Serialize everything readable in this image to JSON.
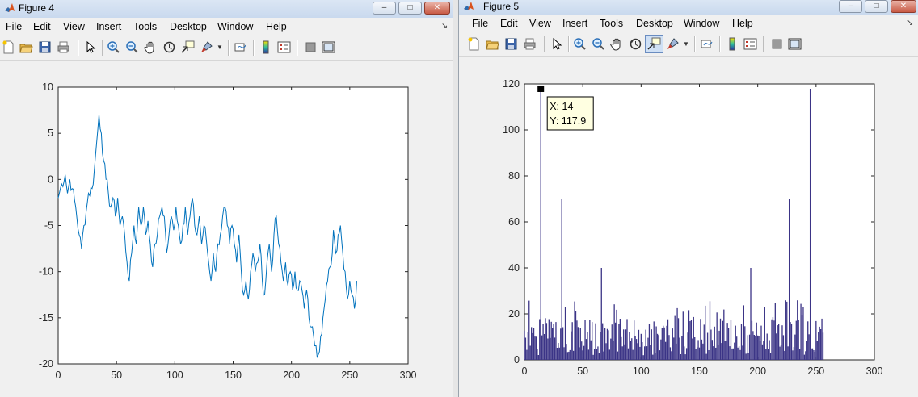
{
  "figure4": {
    "title": "Figure 4",
    "menu": [
      "File",
      "Edit",
      "View",
      "Insert",
      "Tools",
      "Desktop",
      "Window",
      "Help"
    ],
    "chart_data": {
      "type": "line",
      "xlim": [
        0,
        300
      ],
      "ylim": [
        -20,
        10
      ],
      "xticks": [
        "0",
        "50",
        "100",
        "150",
        "200",
        "250",
        "300"
      ],
      "yticks": [
        "10",
        "5",
        "0",
        "-5",
        "-10",
        "-15",
        "-20"
      ],
      "line_color": "#0072bd",
      "x_range_of_series": [
        0,
        256
      ],
      "series": [
        {
          "points": [
            [
              0,
              -2
            ],
            [
              3,
              -0.5
            ],
            [
              6,
              0.5
            ],
            [
              8,
              -1.5
            ],
            [
              10,
              0
            ],
            [
              12,
              -1
            ],
            [
              15,
              -3
            ],
            [
              18,
              -6
            ],
            [
              20,
              -7.5
            ],
            [
              22,
              -5
            ],
            [
              24,
              -3.5
            ],
            [
              26,
              -1.5
            ],
            [
              29,
              -1
            ],
            [
              31,
              1
            ],
            [
              33,
              4
            ],
            [
              35,
              7
            ],
            [
              37,
              5
            ],
            [
              39,
              2
            ],
            [
              41,
              0
            ],
            [
              43,
              -1.5
            ],
            [
              45,
              -3
            ],
            [
              47,
              -2
            ],
            [
              49,
              -4
            ],
            [
              51,
              -2
            ],
            [
              53,
              -5
            ],
            [
              55,
              -4
            ],
            [
              57,
              -6
            ],
            [
              59,
              -9
            ],
            [
              61,
              -11
            ],
            [
              63,
              -8
            ],
            [
              65,
              -5
            ],
            [
              67,
              -7
            ],
            [
              69,
              -3
            ],
            [
              71,
              -5
            ],
            [
              73,
              -3
            ],
            [
              75,
              -6
            ],
            [
              77,
              -4.5
            ],
            [
              79,
              -7
            ],
            [
              81,
              -9.5
            ],
            [
              83,
              -7
            ],
            [
              85,
              -6
            ],
            [
              87,
              -4
            ],
            [
              89,
              -3
            ],
            [
              91,
              -4
            ],
            [
              93,
              -8
            ],
            [
              95,
              -6
            ],
            [
              97,
              -4
            ],
            [
              99,
              -5.5
            ],
            [
              101,
              -3
            ],
            [
              103,
              -5
            ],
            [
              105,
              -7
            ],
            [
              107,
              -5
            ],
            [
              109,
              -3
            ],
            [
              111,
              -6
            ],
            [
              113,
              -4
            ],
            [
              115,
              -2
            ],
            [
              117,
              -5
            ],
            [
              119,
              -6
            ],
            [
              121,
              -4
            ],
            [
              123,
              -7
            ],
            [
              125,
              -5
            ],
            [
              127,
              -6.5
            ],
            [
              129,
              -9
            ],
            [
              131,
              -11
            ],
            [
              133,
              -8
            ],
            [
              135,
              -10
            ],
            [
              137,
              -7
            ],
            [
              139,
              -6
            ],
            [
              141,
              -4
            ],
            [
              143,
              -3
            ],
            [
              145,
              -5
            ],
            [
              147,
              -7
            ],
            [
              149,
              -5
            ],
            [
              151,
              -7
            ],
            [
              153,
              -9
            ],
            [
              155,
              -6
            ],
            [
              157,
              -10
            ],
            [
              159,
              -12.5
            ],
            [
              161,
              -11
            ],
            [
              163,
              -13
            ],
            [
              165,
              -10
            ],
            [
              167,
              -8
            ],
            [
              169,
              -10
            ],
            [
              171,
              -9
            ],
            [
              173,
              -7
            ],
            [
              175,
              -11
            ],
            [
              177,
              -12.5
            ],
            [
              179,
              -9
            ],
            [
              181,
              -7
            ],
            [
              183,
              -10
            ],
            [
              185,
              -6
            ],
            [
              187,
              -4
            ],
            [
              189,
              -7
            ],
            [
              191,
              -9
            ],
            [
              193,
              -11
            ],
            [
              195,
              -9
            ],
            [
              197,
              -11.5
            ],
            [
              199,
              -10
            ],
            [
              201,
              -12
            ],
            [
              203,
              -10
            ],
            [
              205,
              -12
            ],
            [
              207,
              -11
            ],
            [
              209,
              -12
            ],
            [
              211,
              -14
            ],
            [
              213,
              -12
            ],
            [
              215,
              -15
            ],
            [
              217,
              -16
            ],
            [
              219,
              -17
            ],
            [
              221,
              -18
            ],
            [
              223,
              -19
            ],
            [
              225,
              -17
            ],
            [
              227,
              -15
            ],
            [
              229,
              -13
            ],
            [
              231,
              -11
            ],
            [
              233,
              -9.5
            ],
            [
              235,
              -8
            ],
            [
              236,
              -5.5
            ],
            [
              238,
              -8
            ],
            [
              240,
              -6
            ],
            [
              242,
              -5
            ],
            [
              244,
              -8
            ],
            [
              246,
              -10
            ],
            [
              248,
              -13
            ],
            [
              250,
              -11
            ],
            [
              252,
              -12.5
            ],
            [
              254,
              -14
            ],
            [
              256,
              -11
            ]
          ]
        }
      ]
    },
    "window_buttons": {
      "minimize": "–",
      "maximize": "□",
      "close": "✕"
    },
    "toolbar_icons": [
      "new-figure-icon",
      "open-file-icon",
      "save-icon",
      "print-icon",
      "select-arrow-icon",
      "zoom-in-icon",
      "zoom-out-icon",
      "pan-hand-icon",
      "rotate-3d-icon",
      "data-cursor-icon",
      "brush-icon",
      "link-plot-icon",
      "insert-colorbar-icon",
      "insert-legend-icon",
      "hide-plot-tools-icon",
      "show-plot-tools-icon"
    ]
  },
  "figure5": {
    "title": "Figure 5",
    "menu": [
      "File",
      "Edit",
      "View",
      "Insert",
      "Tools",
      "Desktop",
      "Window",
      "Help"
    ],
    "chart_data": {
      "type": "bar",
      "xlim": [
        0,
        300
      ],
      "ylim": [
        0,
        120
      ],
      "xticks": [
        "0",
        "50",
        "100",
        "150",
        "200",
        "250",
        "300"
      ],
      "yticks": [
        "120",
        "100",
        "80",
        "60",
        "40",
        "20",
        "0"
      ],
      "bar_color": "#3b3486",
      "x_range_of_series": [
        0,
        256
      ],
      "highlights": [
        [
          14,
          117.9
        ],
        [
          32,
          70
        ],
        [
          66,
          40
        ],
        [
          194,
          40
        ],
        [
          227,
          70
        ],
        [
          245,
          117.9
        ]
      ],
      "datatip": {
        "x_label": "X: 14",
        "y_label": "Y: 117.9",
        "x": 14,
        "y": 117.9
      }
    },
    "window_buttons": {
      "minimize": "–",
      "maximize": "□",
      "close": "✕"
    }
  }
}
